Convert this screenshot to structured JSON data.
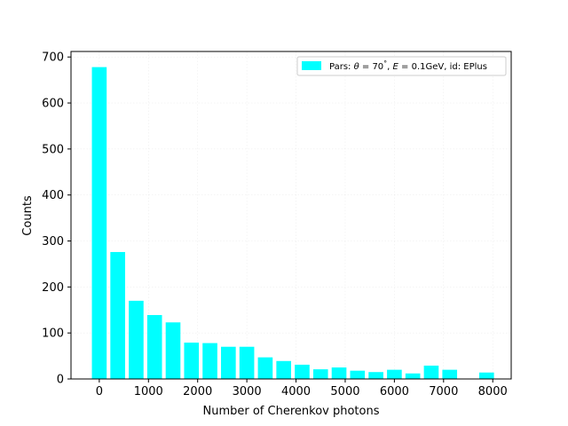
{
  "chart_data": {
    "type": "bar",
    "xlabel": "Number of Cherenkov photons",
    "ylabel": "Counts",
    "xlim": [
      -575,
      8375
    ],
    "ylim": [
      0,
      712
    ],
    "xticks": [
      0,
      1000,
      2000,
      3000,
      4000,
      5000,
      6000,
      7000,
      8000
    ],
    "yticks": [
      0,
      100,
      200,
      300,
      400,
      500,
      600,
      700
    ],
    "grid": true,
    "legend_position": "top-right",
    "bar_color": "#00ffff",
    "bin_width": 375,
    "series": [
      {
        "name": "Pars: θ = 70°, E = 0.1GeV, id: EPlus",
        "x": [
          0,
          375,
          750,
          1125,
          1500,
          1875,
          2250,
          2625,
          3000,
          3375,
          3750,
          4125,
          4500,
          4875,
          5250,
          5625,
          6000,
          6375,
          6750,
          7125,
          7500,
          7875
        ],
        "values": [
          678,
          276,
          170,
          139,
          123,
          79,
          78,
          70,
          70,
          47,
          39,
          31,
          21,
          25,
          18,
          15,
          20,
          12,
          29,
          20,
          0,
          14
        ]
      }
    ]
  },
  "legend": {
    "prefix": "Pars: ",
    "theta_symbol": "θ",
    "theta_value": " = 70",
    "degree": "°",
    "energy_symbol": "E",
    "energy_value": " = 0.1GeV, id: EPlus"
  }
}
